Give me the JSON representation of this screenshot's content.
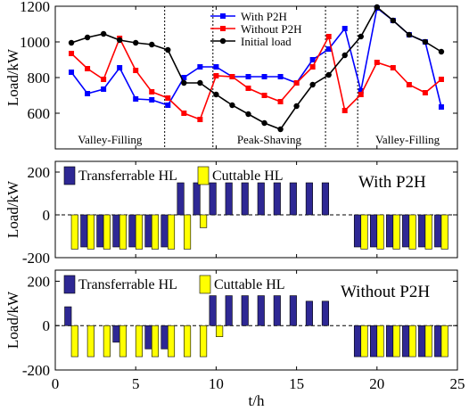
{
  "chart_data": [
    {
      "type": "line",
      "ylabel": "Load/kW",
      "ylim": [
        400,
        1200
      ],
      "yticks": [
        600,
        800,
        1000,
        1200
      ],
      "xlim": [
        0,
        25
      ],
      "legend_placement": "top-center",
      "x": [
        1,
        2,
        3,
        4,
        5,
        6,
        7,
        8,
        9,
        10,
        11,
        12,
        13,
        14,
        15,
        16,
        17,
        18,
        19,
        20,
        21,
        22,
        23,
        24
      ],
      "series": [
        {
          "name": "With P2H",
          "color": "#0000ff",
          "marker": "square",
          "values": [
            830,
            710,
            735,
            855,
            680,
            675,
            645,
            800,
            860,
            860,
            805,
            805,
            805,
            805,
            770,
            900,
            960,
            1075,
            725,
            1190,
            1120,
            1040,
            1000,
            635
          ]
        },
        {
          "name": "Without P2H",
          "color": "#ff0000",
          "marker": "square",
          "values": [
            935,
            850,
            790,
            1020,
            840,
            720,
            685,
            600,
            565,
            810,
            805,
            740,
            700,
            665,
            770,
            860,
            1030,
            615,
            705,
            885,
            855,
            760,
            715,
            790
          ]
        },
        {
          "name": "Initial load",
          "color": "#000000",
          "marker": "circle",
          "values": [
            995,
            1025,
            1045,
            1010,
            995,
            985,
            955,
            770,
            770,
            705,
            645,
            595,
            545,
            510,
            640,
            760,
            815,
            925,
            1030,
            1195,
            1120,
            1040,
            1000,
            945
          ]
        }
      ],
      "dividers": [
        6.8,
        9.8,
        16.8,
        18.8
      ],
      "regions": [
        "Valley-Filling",
        "Peak-Shaving",
        "Valley-Filling"
      ]
    },
    {
      "type": "bar",
      "ylabel": "Load/kW",
      "ylim": [
        -200,
        250
      ],
      "yticks": [
        -200,
        0,
        200
      ],
      "xlim": [
        0,
        25
      ],
      "annotation": "With P2H",
      "series": [
        {
          "name": "Transferrable HL",
          "color": "#2e2894",
          "x": [
            2,
            3,
            4,
            5,
            6,
            7,
            8,
            9,
            10,
            11,
            12,
            13,
            14,
            15,
            16,
            17,
            19,
            20,
            21,
            22,
            23,
            24
          ],
          "values": [
            -150,
            -150,
            -150,
            -150,
            -150,
            -150,
            150,
            150,
            150,
            150,
            150,
            150,
            150,
            150,
            150,
            150,
            -150,
            -150,
            -150,
            -150,
            -150,
            -150
          ]
        },
        {
          "name": "Cuttable HL",
          "color": "#ffff00",
          "x": [
            1,
            2,
            3,
            4,
            5,
            6,
            7,
            8,
            9,
            19,
            20,
            21,
            22,
            23,
            24
          ],
          "values": [
            -160,
            -160,
            -160,
            -160,
            -160,
            -160,
            -160,
            -160,
            -60,
            -160,
            -160,
            -160,
            -160,
            -160,
            -160
          ]
        }
      ]
    },
    {
      "type": "bar",
      "xlabel": "t/h",
      "ylabel": "Load/kW",
      "ylim": [
        -200,
        250
      ],
      "yticks": [
        -200,
        0,
        200
      ],
      "xlim": [
        0,
        25
      ],
      "xticks": [
        0,
        5,
        10,
        15,
        20,
        25
      ],
      "annotation": "Without P2H",
      "series": [
        {
          "name": "Transferrable HL",
          "color": "#2e2894",
          "x": [
            1,
            4,
            6,
            7,
            10,
            11,
            12,
            13,
            14,
            15,
            16,
            17,
            19,
            20,
            21,
            22,
            23,
            24
          ],
          "values": [
            85,
            -75,
            -105,
            -105,
            135,
            135,
            135,
            135,
            135,
            135,
            110,
            110,
            -140,
            -140,
            -140,
            -140,
            -140,
            -140
          ]
        },
        {
          "name": "Cuttable HL",
          "color": "#ffff00",
          "x": [
            1,
            2,
            3,
            4,
            5,
            6,
            7,
            8,
            9,
            10,
            19,
            20,
            21,
            22,
            23,
            24
          ],
          "values": [
            -140,
            -140,
            -140,
            -140,
            -140,
            -140,
            -140,
            -140,
            -140,
            -50,
            -140,
            -140,
            -140,
            -140,
            -140,
            -140
          ]
        }
      ]
    }
  ]
}
